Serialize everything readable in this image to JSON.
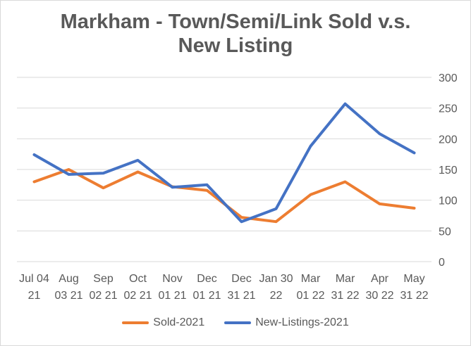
{
  "chart_data": {
    "type": "line",
    "title_lines": [
      "Markham - Town/Semi/Link Sold v.s.",
      "New Listing"
    ],
    "categories": [
      [
        "Jul 04",
        "21"
      ],
      [
        "Aug",
        "03 21"
      ],
      [
        "Sep",
        "02 21"
      ],
      [
        "Oct",
        "02 21"
      ],
      [
        "Nov",
        "01 21"
      ],
      [
        "Dec",
        "01 21"
      ],
      [
        "Dec",
        "31 21"
      ],
      [
        "Jan 30",
        "22"
      ],
      [
        "Mar",
        "01 22"
      ],
      [
        "Mar",
        "31 22"
      ],
      [
        "Apr",
        "30 22"
      ],
      [
        "May",
        "31 22"
      ]
    ],
    "series": [
      {
        "name": "Sold-2021",
        "color": "#ED7D31",
        "values": [
          130,
          150,
          120,
          146,
          122,
          116,
          72,
          65,
          109,
          130,
          94,
          87
        ]
      },
      {
        "name": "New-Listings-2021",
        "color": "#4472C4",
        "values": [
          174,
          142,
          144,
          165,
          121,
          125,
          65,
          86,
          188,
          257,
          208,
          177
        ]
      }
    ],
    "ylim": [
      0,
      300
    ],
    "yticks": [
      0,
      50,
      100,
      150,
      200,
      250,
      300
    ],
    "y_axis_side": "right",
    "grid": true,
    "legend_position": "bottom",
    "gridline_color": "#d9d9d9"
  }
}
